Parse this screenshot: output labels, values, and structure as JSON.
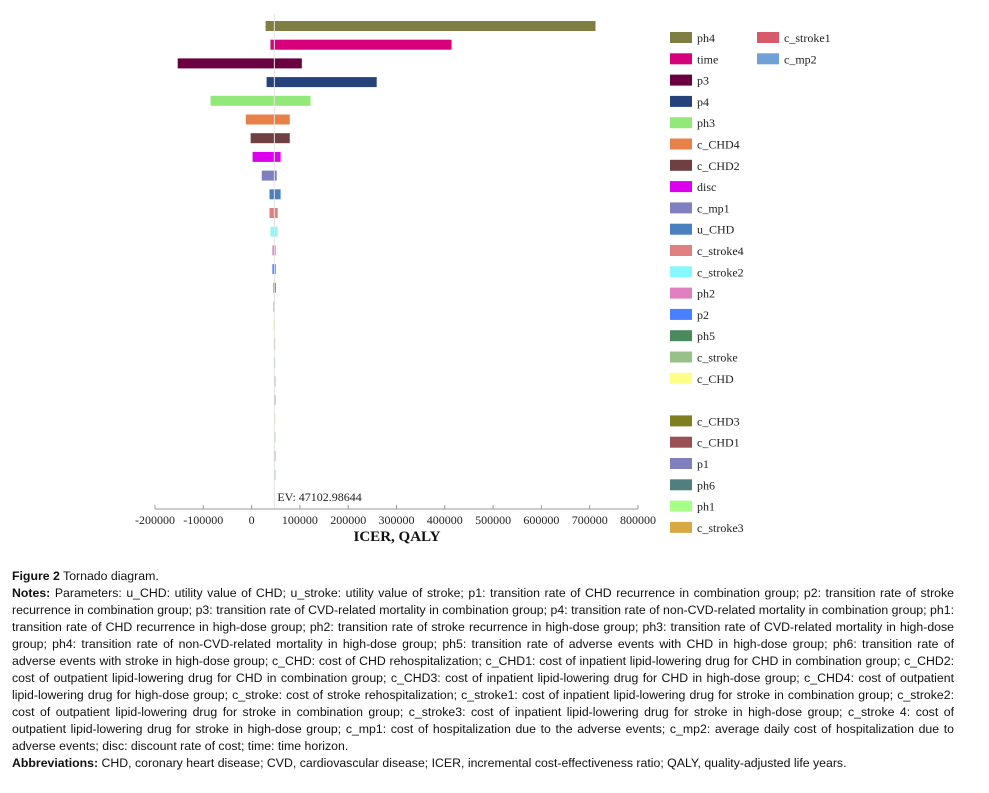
{
  "chart_data": {
    "type": "tornado",
    "xlabel": "ICER, QALY",
    "xlim": [
      -200000,
      800000
    ],
    "xticks": [
      -200000,
      -100000,
      0,
      100000,
      200000,
      300000,
      400000,
      500000,
      600000,
      700000,
      800000
    ],
    "xtick_labels": [
      "-200000",
      "-100000",
      "0",
      "100000",
      "200000",
      "300000",
      "400000",
      "500000",
      "600000",
      "700000",
      "800000"
    ],
    "ev_label": "EV: 47102.98644",
    "ev_value": 47102.98644,
    "legend_placement": "right",
    "bars": [
      {
        "name": "ph4",
        "low": 29000,
        "high": 712000,
        "color": "#7f7f44"
      },
      {
        "name": "time",
        "low": 39000,
        "high": 414000,
        "color": "#d6007a"
      },
      {
        "name": "p3",
        "low": -153000,
        "high": 104000,
        "color": "#6b0040"
      },
      {
        "name": "p4",
        "low": 31000,
        "high": 259000,
        "color": "#25427a"
      },
      {
        "name": "ph3",
        "low": -85000,
        "high": 122000,
        "color": "#93e87a"
      },
      {
        "name": "c_CHD4",
        "low": -12000,
        "high": 79000,
        "color": "#e8804a"
      },
      {
        "name": "c_CHD2",
        "low": -2000,
        "high": 79000,
        "color": "#6f3f42"
      },
      {
        "name": "disc",
        "low": 2000,
        "high": 60000,
        "color": "#dd00ee"
      },
      {
        "name": "c_mp1",
        "low": 21000,
        "high": 52000,
        "color": "#8080c0"
      },
      {
        "name": "u_CHD",
        "low": 37000,
        "high": 60000,
        "color": "#4a7fc0"
      },
      {
        "name": "c_stroke4",
        "low": 37000,
        "high": 54000,
        "color": "#e08080"
      },
      {
        "name": "c_stroke2",
        "low": 39000,
        "high": 54000,
        "color": "#88f8ff"
      },
      {
        "name": "ph2",
        "low": 43000,
        "high": 50000,
        "color": "#e080c0"
      },
      {
        "name": "p2",
        "low": 43000,
        "high": 50000,
        "color": "#4a80ff"
      },
      {
        "name": "ph5",
        "low": 45000,
        "high": 50000,
        "color": "#4a8a5e"
      },
      {
        "name": "c_stroke",
        "low": 45000,
        "high": 48000,
        "color": "#98c088"
      },
      {
        "name": "c_CHD",
        "low": 44000,
        "high": 49000,
        "color": "#ffff88"
      },
      {
        "name": "c_CHD3",
        "low": 46500,
        "high": 47800,
        "color": "#7f7f22"
      },
      {
        "name": "c_CHD1",
        "low": 46500,
        "high": 47800,
        "color": "#9a5055"
      },
      {
        "name": "p1",
        "low": 47000,
        "high": 47200,
        "color": "#8080c0"
      },
      {
        "name": "ph6",
        "low": 47000,
        "high": 47200,
        "color": "#4f7f7f"
      },
      {
        "name": "ph1",
        "low": 47000,
        "high": 47200,
        "color": "#a8ff88"
      },
      {
        "name": "c_stroke3",
        "low": 47000,
        "high": 47200,
        "color": "#d8a845"
      },
      {
        "name": "c_stroke1",
        "low": 47050,
        "high": 47150,
        "color": "#d85a6a"
      },
      {
        "name": "c_mp2",
        "low": 47050,
        "high": 47150,
        "color": "#70a0d8"
      }
    ],
    "legend": {
      "column1": [
        "ph4",
        "time",
        "p3",
        "p4",
        "ph3",
        "c_CHD4",
        "c_CHD2",
        "disc",
        "c_mp1",
        "u_CHD",
        "c_stroke4",
        "c_stroke2",
        "ph2",
        "p2",
        "ph5",
        "c_stroke",
        "c_CHD",
        "",
        "c_CHD3",
        "c_CHD1",
        "p1",
        "ph6",
        "ph1",
        "c_stroke3"
      ],
      "column2": [
        "c_stroke1",
        "c_mp2"
      ]
    }
  },
  "caption": {
    "figure_label": "Figure 2",
    "figure_title": "Tornado diagram.",
    "notes_label": "Notes:",
    "notes_text": "Parameters: u_CHD: utility value of CHD; u_stroke: utility value of stroke; p1: transition rate of CHD recurrence in combination group; p2: transition rate of stroke recurrence in combination group; p3: transition rate of CVD-related mortality in combination group; p4: transition rate of non-CVD-related mortality in combination group; ph1: transition rate of CHD recurrence in high-dose group; ph2: transition rate of stroke recurrence in high-dose group; ph3: transition rate of CVD-related mortality in high-dose group; ph4: transition rate of non-CVD-related mortality in high-dose group; ph5: transition rate of adverse events with CHD in high-dose group; ph6: transition rate of adverse events with stroke in high-dose group; c_CHD: cost of CHD rehospitalization; c_CHD1: cost of inpatient lipid-lowering drug for CHD in combination group; c_CHD2: cost of outpatient lipid-lowering drug for CHD in combination group; c_CHD3: cost of inpatient lipid-lowering drug for CHD in high-dose group; c_CHD4: cost of outpatient lipid-lowering drug for high-dose group; c_stroke: cost of stroke rehospitalization; c_stroke1: cost of inpatient lipid-lowering drug for stroke in combination group; c_stroke2: cost of outpatient lipid-lowering drug for stroke in combination group; c_stroke3: cost of inpatient lipid-lowering drug for stroke in high-dose group; c_stroke 4: cost of outpatient lipid-lowering drug for stroke in high-dose group; c_mp1: cost of hospitalization due to the adverse events; c_mp2: average daily cost of hospitalization due to adverse events; disc: discount rate of cost; time: time horizon.",
    "abbrev_label": "Abbreviations:",
    "abbrev_text": "CHD, coronary heart disease; CVD, cardiovascular disease; ICER, incremental cost-effectiveness ratio; QALY, quality-adjusted life years."
  }
}
